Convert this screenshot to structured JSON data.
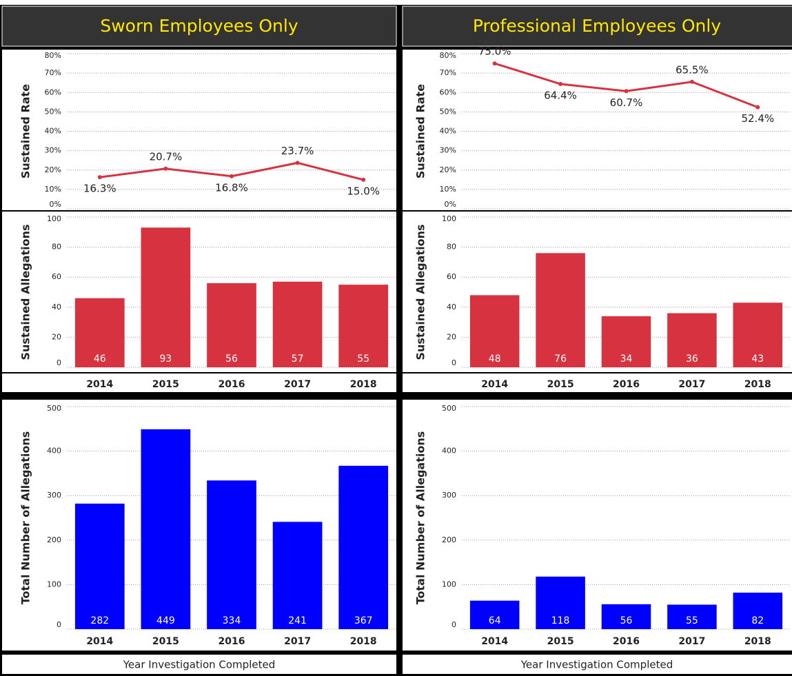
{
  "chart_data": [
    {
      "type": "line",
      "title": "Sworn Employees Only",
      "ylabel": "Sustained Rate",
      "values": [
        16.3,
        20.7,
        16.8,
        23.7,
        15.0
      ],
      "value_labels": [
        "16.3%",
        "20.7%",
        "16.8%",
        "23.7%",
        "15.0%"
      ],
      "color": "#d7323f",
      "ylim": [
        0,
        80
      ],
      "yticks": [
        {
          "value": 0,
          "label": "0%"
        },
        {
          "value": 10,
          "label": "10%"
        },
        {
          "value": 20,
          "label": "20%"
        },
        {
          "value": 30,
          "label": "30%"
        },
        {
          "value": 40,
          "label": "40%"
        },
        {
          "value": 50,
          "label": "50%"
        },
        {
          "value": 60,
          "label": "60%"
        },
        {
          "value": 70,
          "label": "70%"
        },
        {
          "value": 80,
          "label": "80%"
        }
      ],
      "grid": true
    },
    {
      "type": "bar",
      "ylabel": "Sustained Allegations",
      "categories": [
        "2014",
        "2015",
        "2016",
        "2017",
        "2018"
      ],
      "values": [
        46,
        93,
        56,
        57,
        55
      ],
      "color": "#d7323f",
      "ylim": [
        0,
        100
      ],
      "yticks": [
        0,
        20,
        40,
        60,
        80,
        100
      ],
      "grid": true
    },
    {
      "type": "bar",
      "ylabel": "Total Number of Allegations",
      "xlabel": "Year Investigation Completed",
      "categories": [
        "2014",
        "2015",
        "2016",
        "2017",
        "2018"
      ],
      "values": [
        282,
        449,
        334,
        241,
        367
      ],
      "color": "#0000ff",
      "ylim": [
        0,
        500
      ],
      "yticks": [
        0,
        100,
        200,
        300,
        400,
        500
      ],
      "grid": true
    },
    {
      "type": "line",
      "title": "Professional Employees Only",
      "ylabel": "Sustained Rate",
      "values": [
        75.0,
        64.4,
        60.7,
        65.5,
        52.4
      ],
      "value_labels": [
        "75.0%",
        "64.4%",
        "60.7%",
        "65.5%",
        "52.4%"
      ],
      "color": "#d7323f",
      "ylim": [
        0,
        80
      ],
      "yticks": [
        {
          "value": 0,
          "label": "0%"
        },
        {
          "value": 10,
          "label": "10%"
        },
        {
          "value": 20,
          "label": "20%"
        },
        {
          "value": 30,
          "label": "30%"
        },
        {
          "value": 40,
          "label": "40%"
        },
        {
          "value": 50,
          "label": "50%"
        },
        {
          "value": 60,
          "label": "60%"
        },
        {
          "value": 70,
          "label": "70%"
        },
        {
          "value": 80,
          "label": "80%"
        }
      ],
      "grid": true
    },
    {
      "type": "bar",
      "ylabel": "Sustained Allegations",
      "categories": [
        "2014",
        "2015",
        "2016",
        "2017",
        "2018"
      ],
      "values": [
        48,
        76,
        34,
        36,
        43
      ],
      "color": "#d7323f",
      "ylim": [
        0,
        100
      ],
      "yticks": [
        0,
        20,
        40,
        60,
        80,
        100
      ],
      "grid": true
    },
    {
      "type": "bar",
      "ylabel": "Total Number of Allegations",
      "xlabel": "Year Investigation Completed",
      "categories": [
        "2014",
        "2015",
        "2016",
        "2017",
        "2018"
      ],
      "values": [
        64,
        118,
        56,
        55,
        82
      ],
      "color": "#0000ff",
      "ylim": [
        0,
        500
      ],
      "yticks": [
        0,
        100,
        200,
        300,
        400,
        500
      ],
      "grid": true
    }
  ]
}
